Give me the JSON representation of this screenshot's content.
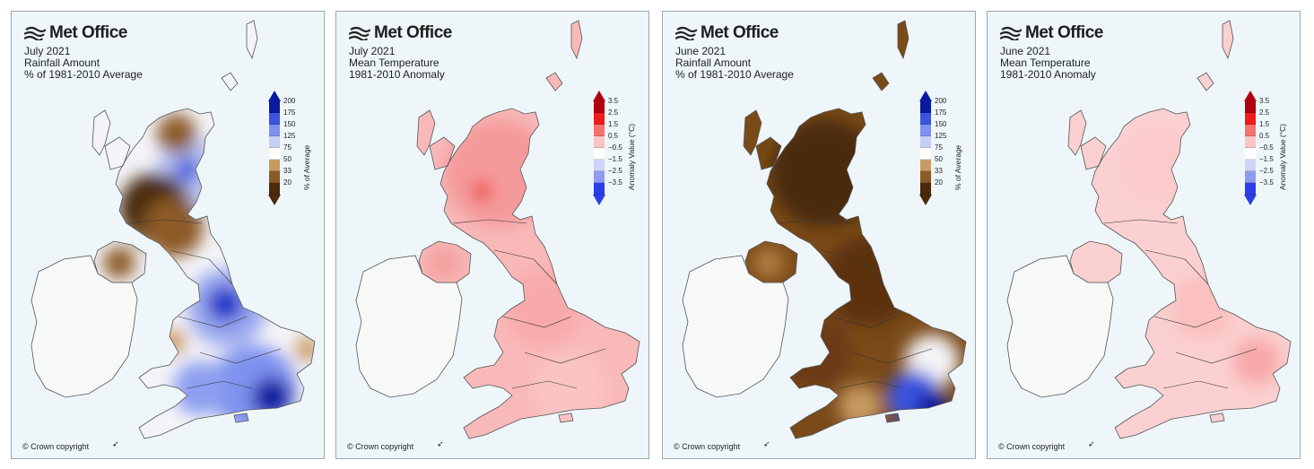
{
  "colors": {
    "panel_bg": "#eef6f9",
    "ireland": "#f7f9f9",
    "coast": "#555555",
    "rain_scale": [
      "#0a1aa0",
      "#3a54e0",
      "#7e92ef",
      "#c7cff6",
      "#ffffff",
      "#c79a62",
      "#8c5a25",
      "#4a2a0a"
    ],
    "temp_scale": [
      "#b00010",
      "#ee1c1c",
      "#f7716f",
      "#fbc4c4",
      "#ffffff",
      "#cfd4f8",
      "#8f9bf0",
      "#2a3fe8"
    ]
  },
  "panels": [
    {
      "logo": "Met Office",
      "title1": "July 2021",
      "title2": "Rainfall Amount",
      "title3": "% of 1981-2010 Average",
      "legend_kind": "rain",
      "legend_ticks": [
        "200",
        "175",
        "150",
        "125",
        "75",
        "50",
        "33",
        "20"
      ],
      "legend_unit": "% of Average",
      "copyright": "© Crown copyright",
      "fill": "mixed_wet_south"
    },
    {
      "logo": "Met Office",
      "title1": "July 2021",
      "title2": "Mean Temperature",
      "title3": "1981-2010 Anomaly",
      "legend_kind": "temp",
      "legend_ticks": [
        "3.5",
        "2.5",
        "1.5",
        "0.5",
        "−0.5",
        "−1.5",
        "−2.5",
        "−3.5"
      ],
      "legend_unit": "Anomaly Value (°C)",
      "copyright": "© Crown copyright",
      "fill": "warm_strong"
    },
    {
      "logo": "Met Office",
      "title1": "June 2021",
      "title2": "Rainfall Amount",
      "title3": "% of 1981-2010 Average",
      "legend_kind": "rain",
      "legend_ticks": [
        "200",
        "175",
        "150",
        "125",
        "75",
        "50",
        "33",
        "20"
      ],
      "legend_unit": "% of Average",
      "copyright": "© Crown copyright",
      "fill": "dry_north_wet_southeast"
    },
    {
      "logo": "Met Office",
      "title1": "June 2021",
      "title2": "Mean Temperature",
      "title3": "1981-2010 Anomaly",
      "legend_kind": "temp",
      "legend_ticks": [
        "3.5",
        "2.5",
        "1.5",
        "0.5",
        "−0.5",
        "−1.5",
        "−2.5",
        "−3.5"
      ],
      "legend_unit": "Anomaly Value (°C)",
      "copyright": "© Crown copyright",
      "fill": "warm_mild"
    }
  ]
}
